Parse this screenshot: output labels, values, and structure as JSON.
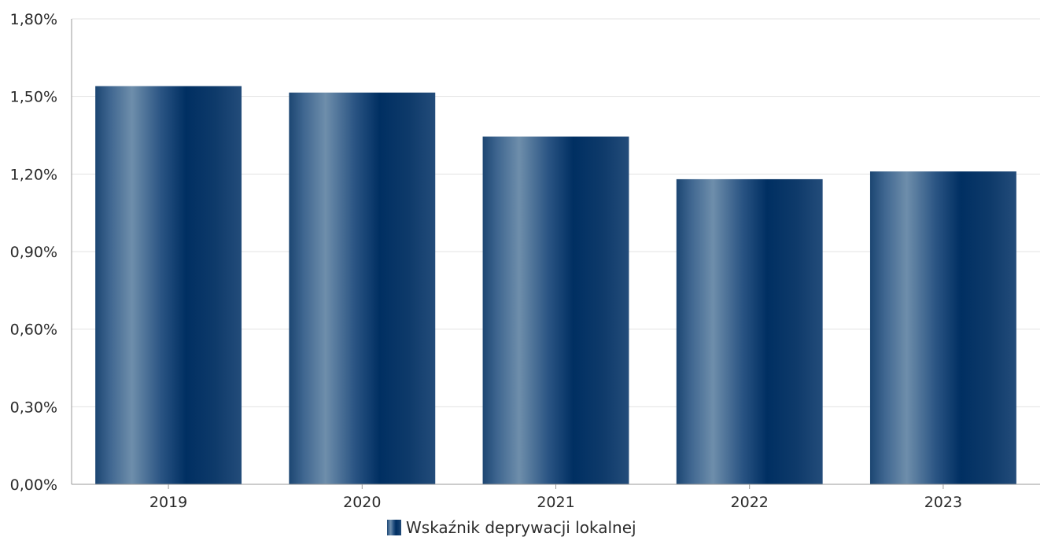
{
  "chart_data": {
    "type": "bar",
    "categories": [
      "2019",
      "2020",
      "2021",
      "2022",
      "2023"
    ],
    "series": [
      {
        "name": "Wskaźnik deprywacji lokalnej",
        "values": [
          1.54,
          1.515,
          1.345,
          1.18,
          1.21
        ]
      }
    ],
    "y_ticks": [
      "0,00%",
      "0,30%",
      "0,60%",
      "0,90%",
      "1,20%",
      "1,50%",
      "1,80%"
    ],
    "ylim": [
      0,
      1.8
    ],
    "y_unit": "%",
    "grid": true,
    "legend_position": "bottom-center",
    "colors": {
      "bar_dark": "#003366",
      "bar_light": "#6e8eab",
      "grid": "#e3e3e3",
      "axis": "#9a9a9a"
    }
  }
}
